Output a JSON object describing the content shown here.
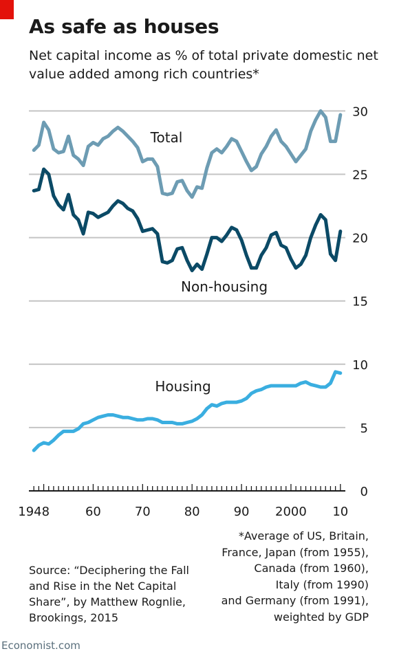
{
  "header": {
    "title": "As safe as houses",
    "subtitle": "Net capital income as % of total private domestic net value added among rich countries*"
  },
  "source_note": "Source: “Deciphering the Fall and Rise in the Net Capital Share”, by Matthew Rognlie, Brookings, 2015",
  "footnote": "*Average of US, Britain,\nFrance, Japan (from 1955),\nCanada (from 1960),\nItaly (from 1990)\nand Germany (from 1991),\nweighted by GDP",
  "brand": "Economist.com",
  "colors": {
    "accent": "#e3120b",
    "total": "#6d9cb3",
    "non_housing": "#0b4a66",
    "housing": "#3aaee0",
    "grid": "#c4c4c4",
    "axis": "#1a1a1a"
  },
  "chart_data": {
    "type": "line",
    "title": "As safe as houses",
    "subtitle": "Net capital income as % of total private domestic net value added among rich countries*",
    "x_ticks": [
      {
        "value": 1948,
        "label": "1948"
      },
      {
        "value": 1960,
        "label": "60"
      },
      {
        "value": 1970,
        "label": "70"
      },
      {
        "value": 1980,
        "label": "80"
      },
      {
        "value": 1990,
        "label": "90"
      },
      {
        "value": 2000,
        "label": "2000"
      },
      {
        "value": 2010,
        "label": "10"
      }
    ],
    "y_ticks": [
      0,
      5,
      10,
      15,
      20,
      25,
      30
    ],
    "xlim": [
      1947,
      2011
    ],
    "ylim": [
      0,
      30
    ],
    "grid": true,
    "axis_side": "right",
    "x": [
      1948,
      1949,
      1950,
      1951,
      1952,
      1953,
      1954,
      1955,
      1956,
      1957,
      1958,
      1959,
      1960,
      1961,
      1962,
      1963,
      1964,
      1965,
      1966,
      1967,
      1968,
      1969,
      1970,
      1971,
      1972,
      1973,
      1974,
      1975,
      1976,
      1977,
      1978,
      1979,
      1980,
      1981,
      1982,
      1983,
      1984,
      1985,
      1986,
      1987,
      1988,
      1989,
      1990,
      1991,
      1992,
      1993,
      1994,
      1995,
      1996,
      1997,
      1998,
      1999,
      2000,
      2001,
      2002,
      2003,
      2004,
      2005,
      2006,
      2007,
      2008,
      2009,
      2010
    ],
    "series": [
      {
        "name": "Total",
        "color": "#6d9cb3",
        "values": [
          26.9,
          27.3,
          29.1,
          28.5,
          27.0,
          26.7,
          26.8,
          28.0,
          26.5,
          26.2,
          25.7,
          27.2,
          27.5,
          27.3,
          27.8,
          28.0,
          28.4,
          28.7,
          28.4,
          28.0,
          27.6,
          27.1,
          26.0,
          26.2,
          26.2,
          25.6,
          23.5,
          23.4,
          23.5,
          24.4,
          24.5,
          23.7,
          23.2,
          24.0,
          23.9,
          25.5,
          26.7,
          27.0,
          26.7,
          27.2,
          27.8,
          27.6,
          26.8,
          26.0,
          25.3,
          25.6,
          26.6,
          27.2,
          28.0,
          28.5,
          27.6,
          27.2,
          26.6,
          26.0,
          26.5,
          27.0,
          28.4,
          29.3,
          30.0,
          29.5,
          27.6,
          27.6,
          29.7
        ]
      },
      {
        "name": "Non-housing",
        "color": "#0b4a66",
        "values": [
          23.7,
          23.8,
          25.4,
          25.0,
          23.3,
          22.6,
          22.2,
          23.4,
          21.8,
          21.4,
          20.3,
          22.0,
          21.9,
          21.6,
          21.8,
          22.0,
          22.5,
          22.9,
          22.7,
          22.3,
          22.1,
          21.5,
          20.5,
          20.6,
          20.7,
          20.3,
          18.1,
          18.0,
          18.2,
          19.1,
          19.2,
          18.2,
          17.4,
          17.9,
          17.5,
          18.7,
          20.0,
          20.0,
          19.7,
          20.2,
          20.8,
          20.6,
          19.8,
          18.6,
          17.6,
          17.6,
          18.6,
          19.2,
          20.2,
          20.4,
          19.4,
          19.2,
          18.3,
          17.6,
          17.9,
          18.6,
          20.0,
          21.0,
          21.8,
          21.4,
          18.7,
          18.2,
          20.5
        ]
      },
      {
        "name": "Housing",
        "color": "#3aaee0",
        "values": [
          3.2,
          3.6,
          3.8,
          3.7,
          4.0,
          4.4,
          4.7,
          4.7,
          4.7,
          4.9,
          5.3,
          5.4,
          5.6,
          5.8,
          5.9,
          6.0,
          6.0,
          5.9,
          5.8,
          5.8,
          5.7,
          5.6,
          5.6,
          5.7,
          5.7,
          5.6,
          5.4,
          5.4,
          5.4,
          5.3,
          5.3,
          5.4,
          5.5,
          5.7,
          6.0,
          6.5,
          6.8,
          6.7,
          6.9,
          7.0,
          7.0,
          7.0,
          7.1,
          7.3,
          7.7,
          7.9,
          8.0,
          8.2,
          8.3,
          8.3,
          8.3,
          8.3,
          8.3,
          8.3,
          8.5,
          8.6,
          8.4,
          8.3,
          8.2,
          8.2,
          8.5,
          9.4,
          9.3
        ]
      }
    ],
    "series_labels": [
      {
        "series": "Total",
        "text": "Total"
      },
      {
        "series": "Non-housing",
        "text": "Non-housing"
      },
      {
        "series": "Housing",
        "text": "Housing"
      }
    ]
  }
}
